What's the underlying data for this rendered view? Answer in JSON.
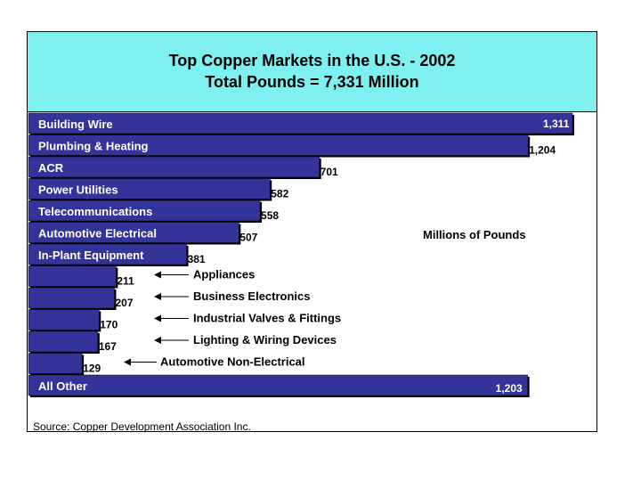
{
  "header": {
    "title_line1": "Top Copper Markets in the U.S. - 2002",
    "title_line2": "Total Pounds = 7,331 Million"
  },
  "unit_note": "Millions of Pounds",
  "source": "Source: Copper Development Association Inc.",
  "colors": {
    "bar": "#333399",
    "header_bg": "#7ff0f0",
    "shadow": "#000000"
  },
  "chart_data": {
    "type": "bar",
    "orientation": "horizontal",
    "title": "Top Copper Markets in the U.S. - 2002",
    "subtitle": "Total Pounds = 7,331 Million",
    "xlabel": "Millions of Pounds",
    "ylabel": "",
    "xlim": [
      0,
      1311
    ],
    "grid": false,
    "categories": [
      "Building Wire",
      "Plumbing & Heating",
      "ACR",
      "Power Utilities",
      "Telecommunications",
      "Automotive Electrical",
      "In-Plant Equipment",
      "Appliances",
      "Business Electronics",
      "Industrial Valves & Fittings",
      "Lighting & Wiring Devices",
      "Automotive Non-Electrical",
      "All Other"
    ],
    "values": [
      1311,
      1204,
      701,
      582,
      558,
      507,
      381,
      211,
      207,
      170,
      167,
      129,
      1203
    ],
    "value_labels": [
      "1,311",
      "1,204",
      "701",
      "582",
      "558",
      "507",
      "381",
      "211",
      "207",
      "170",
      "167",
      "129",
      "1,203"
    ],
    "label_placement": [
      "inside",
      "inside",
      "inside",
      "inside",
      "inside",
      "inside",
      "inside",
      "arrow",
      "arrow",
      "arrow",
      "arrow",
      "arrow",
      "inside"
    ]
  }
}
